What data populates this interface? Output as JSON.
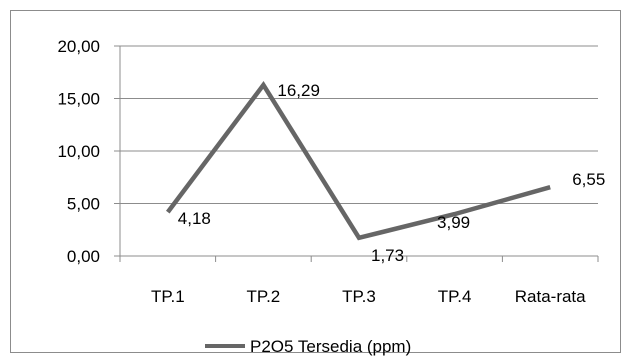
{
  "chart_data": {
    "type": "line",
    "title": "",
    "xlabel": "",
    "ylabel": "",
    "categories": [
      "TP.1",
      "TP.2",
      "TP.3",
      "TP.4",
      "Rata-rata"
    ],
    "ylim": [
      0,
      20
    ],
    "yticks": [
      "0,00",
      "5,00",
      "10,00",
      "15,00",
      "20,00"
    ],
    "series": [
      {
        "name": "P2O5 Tersedia (ppm)",
        "values": [
          4.18,
          16.29,
          1.73,
          3.99,
          6.55
        ],
        "labels": [
          "4,18",
          "16,29",
          "1,73",
          "3,99",
          "6,55"
        ],
        "color": "#666666"
      }
    ],
    "grid": true,
    "legend": "bottom"
  }
}
